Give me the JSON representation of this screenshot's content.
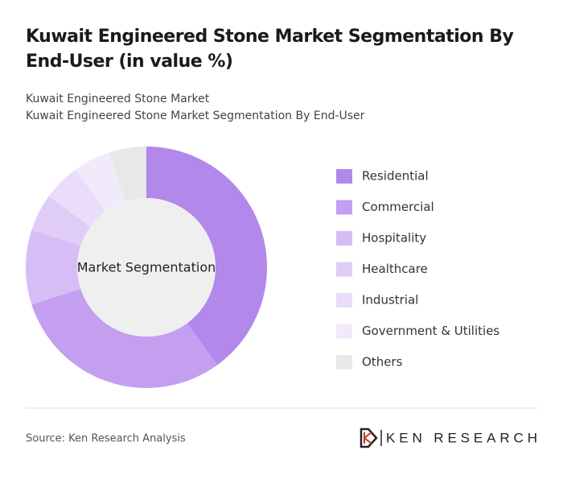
{
  "chart_data": {
    "type": "donut",
    "title": "Kuwait Engineered Stone Market Segmentation By End-User (in value %)",
    "subtitle": [
      "Kuwait Engineered Stone Market",
      "Kuwait Engineered Stone Market Segmentation By End-User"
    ],
    "center_label": "Market Segmentation",
    "categories": [
      "Residential",
      "Commercial",
      "Hospitality",
      "Healthcare",
      "Industrial",
      "Government & Utilities",
      "Others"
    ],
    "values": [
      40,
      30,
      10,
      5,
      5,
      5,
      5
    ],
    "colors": [
      "#b388eb",
      "#c49ff0",
      "#d6bdf5",
      "#e0cdf7",
      "#e9ddf9",
      "#f1eafb",
      "#e8e8e8"
    ],
    "source": "Source: Ken Research Analysis",
    "logo": "KEN RESEARCH"
  }
}
